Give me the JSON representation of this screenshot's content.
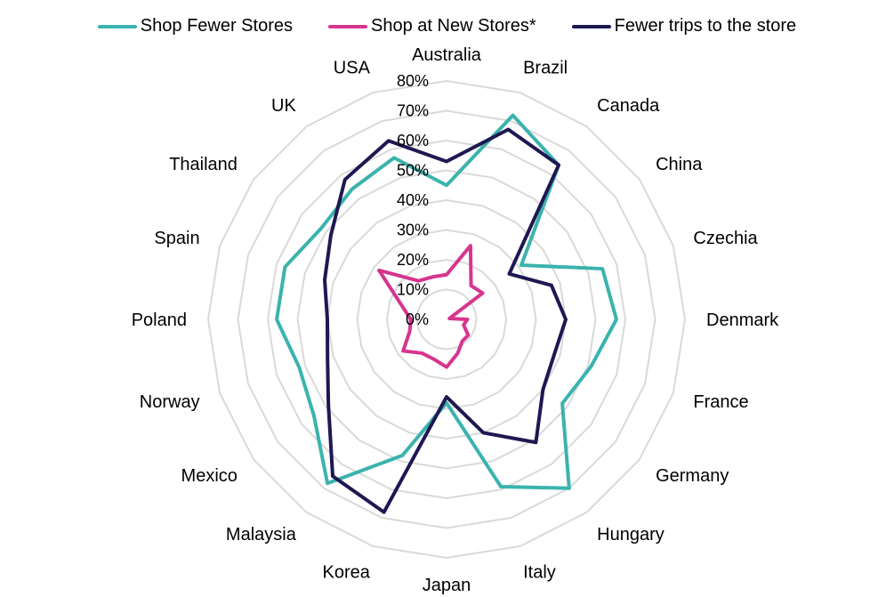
{
  "chart_data": {
    "type": "radar",
    "title": "",
    "categories": [
      "Australia",
      "Brazil",
      "Canada",
      "China",
      "Czechia",
      "Denmark",
      "France",
      "Germany",
      "Hungary",
      "Italy",
      "Japan",
      "Korea",
      "Malaysia",
      "Mexico",
      "Norway",
      "Poland",
      "Spain",
      "Thailand",
      "UK",
      "USA"
    ],
    "r_ticks": [
      "0%",
      "10%",
      "20%",
      "30%",
      "40%",
      "50%",
      "60%",
      "70%",
      "80%"
    ],
    "rlim": [
      0,
      80
    ],
    "grid": true,
    "legend_position": "top",
    "series": [
      {
        "name": "Shop Fewer Stores",
        "color": "#3BB3AE",
        "values": [
          45,
          72,
          64,
          31,
          55,
          57,
          51,
          48,
          70,
          59,
          28,
          48,
          68,
          55,
          52,
          57,
          57,
          52,
          54,
          57
        ]
      },
      {
        "name": "Shop at New Stores*",
        "color": "#D6358E",
        "values": [
          15,
          26,
          14,
          15,
          1,
          7,
          6,
          9,
          9,
          12,
          16,
          14,
          14,
          18,
          13,
          12,
          16,
          28,
          16,
          15
        ]
      },
      {
        "name": "Fewer trips to the store",
        "color": "#1E1852",
        "values": [
          53,
          67,
          64,
          26,
          37,
          40,
          38,
          40,
          51,
          40,
          26,
          68,
          65,
          49,
          42,
          40,
          43,
          48,
          58,
          63
        ]
      }
    ]
  }
}
